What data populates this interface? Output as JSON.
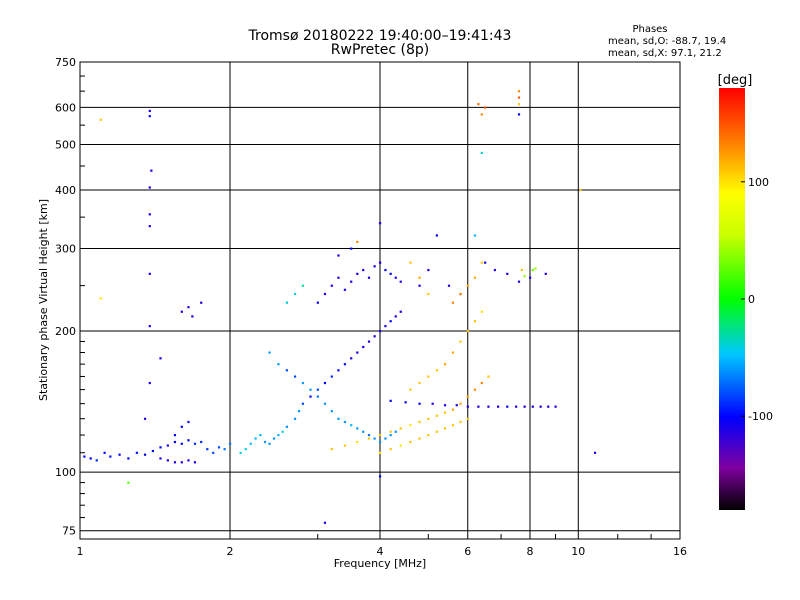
{
  "chart_data": {
    "type": "scatter",
    "title": "Tromsø 20180222 19:40:00–19:41:43",
    "subtitle": "RwPretec (8p)",
    "xlabel": "Frequency [MHz]",
    "ylabel": "Stationary phase Virtual Height [km]",
    "x_scale": "log",
    "y_scale": "log",
    "xlim": [
      1,
      16
    ],
    "ylim": [
      72,
      750
    ],
    "x_ticks": [
      1,
      2,
      4,
      6,
      8,
      10,
      16
    ],
    "x_tick_labels": [
      "1",
      "2",
      "4",
      "6",
      "8",
      "10",
      "16"
    ],
    "y_ticks": [
      75,
      100,
      200,
      300,
      400,
      500,
      600,
      750
    ],
    "y_tick_labels": [
      "75",
      "100",
      "200",
      "300",
      "400",
      "500",
      "600",
      "750"
    ],
    "grid": true,
    "phases_box": {
      "heading": "Phases",
      "line1": "mean, sd,O: -88.7, 19.4",
      "line2": "mean, sd,X:  97.1, 21.2"
    },
    "colorbar": {
      "label": "[deg]",
      "range": [
        -180,
        180
      ],
      "ticks": [
        100,
        0,
        -100
      ],
      "tick_labels": [
        "100",
        "0",
        "-100"
      ],
      "colormap": "rainbow (black-purple-blue-cyan-green-yellow-orange-red)"
    },
    "series": [
      {
        "values": [
          [
            1.02,
            108,
            -100
          ],
          [
            1.05,
            107,
            -100
          ],
          [
            1.08,
            106,
            -90
          ],
          [
            1.12,
            110,
            -100
          ],
          [
            1.15,
            108,
            -95
          ],
          [
            1.2,
            109,
            -100
          ],
          [
            1.25,
            107,
            -100
          ],
          [
            1.3,
            110,
            -95
          ],
          [
            1.35,
            109,
            -100
          ],
          [
            1.4,
            111,
            -100
          ],
          [
            1.45,
            107,
            -110
          ],
          [
            1.5,
            106,
            -110
          ],
          [
            1.55,
            105,
            -110
          ],
          [
            1.6,
            105,
            -110
          ],
          [
            1.65,
            106,
            -110
          ],
          [
            1.7,
            105,
            -110
          ],
          [
            1.45,
            113,
            -100
          ],
          [
            1.5,
            114,
            -110
          ],
          [
            1.55,
            116,
            -100
          ],
          [
            1.6,
            115,
            -100
          ],
          [
            1.65,
            117,
            -100
          ],
          [
            1.7,
            115,
            -90
          ],
          [
            1.75,
            116,
            -90
          ],
          [
            1.8,
            112,
            -85
          ],
          [
            1.85,
            110,
            -80
          ],
          [
            1.9,
            113,
            -80
          ],
          [
            1.95,
            112,
            -70
          ],
          [
            2.0,
            115,
            -70
          ],
          [
            1.55,
            120,
            -100
          ],
          [
            1.6,
            125,
            -100
          ],
          [
            1.65,
            128,
            -95
          ],
          [
            1.38,
            590,
            -110
          ],
          [
            1.38,
            575,
            -100
          ],
          [
            1.39,
            440,
            -110
          ],
          [
            1.38,
            405,
            -110
          ],
          [
            1.38,
            355,
            -110
          ],
          [
            1.38,
            335,
            -110
          ],
          [
            1.38,
            265,
            -110
          ],
          [
            1.38,
            205,
            -110
          ],
          [
            1.38,
            155,
            -110
          ],
          [
            1.45,
            175,
            -110
          ],
          [
            1.6,
            220,
            -110
          ],
          [
            1.65,
            225,
            -110
          ],
          [
            1.68,
            215,
            -110
          ],
          [
            1.75,
            230,
            -110
          ],
          [
            1.35,
            130,
            -110
          ],
          [
            1.1,
            565,
            110
          ],
          [
            1.1,
            235,
            100
          ],
          [
            1.25,
            95,
            20
          ]
        ]
      },
      {
        "values": [
          [
            2.1,
            110,
            -40
          ],
          [
            2.15,
            112,
            -40
          ],
          [
            2.2,
            115,
            -50
          ],
          [
            2.25,
            118,
            -50
          ],
          [
            2.3,
            120,
            -50
          ],
          [
            2.35,
            116,
            -60
          ],
          [
            2.4,
            115,
            -60
          ],
          [
            2.45,
            118,
            -60
          ],
          [
            2.5,
            120,
            -50
          ],
          [
            2.55,
            122,
            -40
          ],
          [
            2.6,
            125,
            -60
          ],
          [
            2.7,
            130,
            -60
          ],
          [
            2.75,
            135,
            -60
          ],
          [
            2.8,
            140,
            -80
          ],
          [
            2.9,
            145,
            -100
          ],
          [
            3.0,
            150,
            -80
          ],
          [
            3.1,
            155,
            -100
          ],
          [
            3.2,
            160,
            -90
          ],
          [
            3.3,
            165,
            -100
          ],
          [
            3.4,
            170,
            -100
          ],
          [
            3.5,
            175,
            -110
          ],
          [
            3.6,
            180,
            -110
          ],
          [
            3.7,
            185,
            -110
          ],
          [
            3.8,
            190,
            -110
          ],
          [
            3.9,
            195,
            -110
          ],
          [
            4.0,
            200,
            -110
          ],
          [
            4.1,
            205,
            -110
          ],
          [
            4.2,
            210,
            -100
          ],
          [
            4.3,
            215,
            -110
          ],
          [
            4.4,
            220,
            -110
          ],
          [
            2.4,
            180,
            -60
          ],
          [
            2.5,
            170,
            -60
          ],
          [
            2.6,
            165,
            -80
          ],
          [
            2.7,
            160,
            -80
          ],
          [
            2.8,
            155,
            -60
          ],
          [
            2.9,
            150,
            -60
          ],
          [
            3.0,
            145,
            -70
          ],
          [
            3.1,
            140,
            -60
          ],
          [
            3.2,
            135,
            -60
          ],
          [
            3.3,
            130,
            -60
          ],
          [
            3.4,
            128,
            -60
          ],
          [
            3.5,
            126,
            -50
          ],
          [
            3.6,
            124,
            -60
          ],
          [
            3.7,
            122,
            -60
          ],
          [
            3.8,
            120,
            -70
          ],
          [
            3.9,
            118,
            -60
          ],
          [
            4.0,
            116,
            -60
          ],
          [
            4.1,
            118,
            -60
          ],
          [
            4.2,
            120,
            -60
          ],
          [
            4.3,
            122,
            -60
          ],
          [
            3.0,
            230,
            -100
          ],
          [
            3.1,
            240,
            -110
          ],
          [
            3.2,
            250,
            -110
          ],
          [
            3.3,
            260,
            -110
          ],
          [
            3.4,
            245,
            -110
          ],
          [
            3.5,
            255,
            -110
          ],
          [
            3.6,
            265,
            -110
          ],
          [
            3.7,
            270,
            -110
          ],
          [
            3.8,
            260,
            -110
          ],
          [
            3.9,
            275,
            -110
          ],
          [
            4.0,
            280,
            -110
          ],
          [
            4.1,
            270,
            -100
          ],
          [
            4.2,
            265,
            -100
          ],
          [
            4.3,
            260,
            -110
          ],
          [
            4.4,
            255,
            -110
          ],
          [
            4.0,
            340,
            -110
          ],
          [
            3.5,
            300,
            -100
          ],
          [
            3.3,
            290,
            -110
          ],
          [
            2.6,
            230,
            -40
          ],
          [
            2.7,
            240,
            -40
          ],
          [
            2.8,
            250,
            -30
          ],
          [
            3.1,
            78,
            -110
          ],
          [
            4.0,
            98,
            -100
          ],
          [
            4.8,
            250,
            -110
          ],
          [
            5.0,
            270,
            -110
          ],
          [
            5.2,
            320,
            -100
          ],
          [
            5.5,
            250,
            -110
          ],
          [
            5.8,
            240,
            -110
          ],
          [
            6.2,
            320,
            -50
          ],
          [
            6.5,
            280,
            -110
          ],
          [
            6.8,
            270,
            -110
          ],
          [
            7.2,
            265,
            -110
          ],
          [
            7.6,
            255,
            -110
          ],
          [
            8.0,
            260,
            -110
          ],
          [
            8.6,
            265,
            -110
          ],
          [
            10.8,
            110,
            -110
          ],
          [
            7.6,
            580,
            -100
          ],
          [
            6.4,
            480,
            -40
          ]
        ]
      },
      {
        "values": [
          [
            4.2,
            142,
            -100
          ],
          [
            4.5,
            141,
            -100
          ],
          [
            4.8,
            140,
            -100
          ],
          [
            5.1,
            140,
            -110
          ],
          [
            5.4,
            139,
            -110
          ],
          [
            5.7,
            139,
            -110
          ],
          [
            6.0,
            138,
            -110
          ],
          [
            6.3,
            138,
            -110
          ],
          [
            6.6,
            138,
            -110
          ],
          [
            6.9,
            138,
            -110
          ],
          [
            7.2,
            138,
            -100
          ],
          [
            7.5,
            138,
            -110
          ],
          [
            7.8,
            138,
            -110
          ],
          [
            8.1,
            138,
            -110
          ],
          [
            8.4,
            138,
            -110
          ],
          [
            8.7,
            138,
            -110
          ],
          [
            9.0,
            138,
            -110
          ]
        ]
      },
      {
        "values": [
          [
            3.2,
            112,
            110
          ],
          [
            3.4,
            114,
            110
          ],
          [
            3.6,
            116,
            100
          ],
          [
            3.8,
            118,
            110
          ],
          [
            4.0,
            120,
            110
          ],
          [
            4.2,
            122,
            110
          ],
          [
            4.4,
            124,
            110
          ],
          [
            4.6,
            126,
            100
          ],
          [
            4.8,
            128,
            110
          ],
          [
            5.0,
            130,
            110
          ],
          [
            5.2,
            132,
            110
          ],
          [
            5.4,
            134,
            110
          ],
          [
            5.6,
            136,
            120
          ],
          [
            5.8,
            140,
            120
          ],
          [
            6.0,
            145,
            120
          ],
          [
            6.2,
            150,
            130
          ],
          [
            6.4,
            155,
            130
          ],
          [
            6.6,
            160,
            110
          ],
          [
            4.0,
            110,
            100
          ],
          [
            4.2,
            112,
            110
          ],
          [
            4.4,
            114,
            100
          ],
          [
            4.6,
            116,
            110
          ],
          [
            4.8,
            118,
            110
          ],
          [
            5.0,
            120,
            110
          ],
          [
            5.2,
            122,
            110
          ],
          [
            5.4,
            124,
            110
          ],
          [
            5.6,
            126,
            110
          ],
          [
            5.8,
            128,
            110
          ],
          [
            6.0,
            130,
            110
          ],
          [
            4.6,
            150,
            110
          ],
          [
            4.8,
            155,
            110
          ],
          [
            5.0,
            160,
            110
          ],
          [
            5.2,
            165,
            110
          ],
          [
            5.4,
            170,
            120
          ],
          [
            5.6,
            180,
            120
          ],
          [
            5.8,
            190,
            110
          ],
          [
            6.0,
            200,
            110
          ],
          [
            6.2,
            210,
            110
          ],
          [
            6.4,
            220,
            100
          ],
          [
            5.6,
            230,
            130
          ],
          [
            5.8,
            240,
            130
          ],
          [
            6.0,
            250,
            120
          ],
          [
            6.2,
            260,
            120
          ],
          [
            6.4,
            280,
            110
          ],
          [
            3.6,
            310,
            130
          ],
          [
            6.3,
            610,
            140
          ],
          [
            6.5,
            600,
            150
          ],
          [
            6.4,
            580,
            130
          ],
          [
            7.6,
            650,
            130
          ],
          [
            7.6,
            630,
            150
          ],
          [
            7.6,
            610,
            110
          ],
          [
            7.7,
            270,
            110
          ],
          [
            7.8,
            262,
            40
          ],
          [
            8.1,
            270,
            30
          ],
          [
            8.2,
            272,
            40
          ],
          [
            10.1,
            400,
            110
          ],
          [
            4.6,
            280,
            110
          ],
          [
            4.8,
            260,
            120
          ],
          [
            5.0,
            240,
            110
          ]
        ]
      }
    ]
  }
}
